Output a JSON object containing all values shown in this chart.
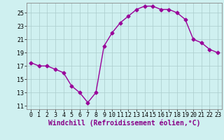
{
  "x": [
    0,
    1,
    2,
    3,
    4,
    5,
    6,
    7,
    8,
    9,
    10,
    11,
    12,
    13,
    14,
    15,
    16,
    17,
    18,
    19,
    20,
    21,
    22,
    23
  ],
  "y": [
    17.5,
    17.0,
    17.0,
    16.5,
    16.0,
    14.0,
    13.0,
    11.5,
    13.0,
    20.0,
    22.0,
    23.5,
    24.5,
    25.5,
    26.0,
    26.0,
    25.5,
    25.5,
    25.0,
    24.0,
    21.0,
    20.5,
    19.5,
    19.0
  ],
  "line_color": "#990099",
  "marker": "D",
  "marker_size": 2.5,
  "bg_color": "#cff0f0",
  "grid_color": "#aacccc",
  "xlabel": "Windchill (Refroidissement éolien,°C)",
  "xlabel_fontsize": 7,
  "yticks": [
    11,
    13,
    15,
    17,
    19,
    21,
    23,
    25
  ],
  "xticks": [
    0,
    1,
    2,
    3,
    4,
    5,
    6,
    7,
    8,
    9,
    10,
    11,
    12,
    13,
    14,
    15,
    16,
    17,
    18,
    19,
    20,
    21,
    22,
    23
  ],
  "ylim": [
    10.5,
    26.5
  ],
  "xlim": [
    -0.5,
    23.5
  ],
  "tick_fontsize": 6
}
